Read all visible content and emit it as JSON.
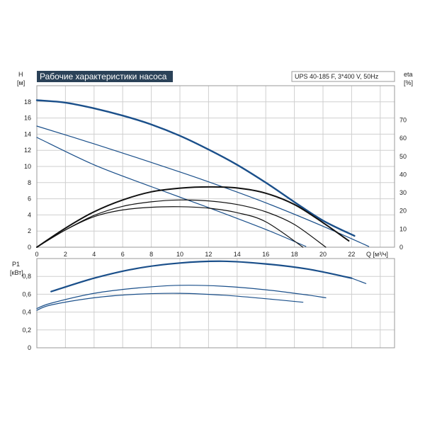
{
  "chart_data": [
    {
      "type": "line",
      "title": "Рабочие характеристики насоса",
      "model": "UPS 40-185 F, 3*400 V, 50Hz",
      "ylabel_left": "H",
      "ylabel_left_unit": "[м]",
      "ylabel_right": "eta",
      "ylabel_right_unit": "[%]",
      "xlabel": "Q [м³/ч]",
      "xlim": [
        0,
        25
      ],
      "ylim": [
        0,
        20
      ],
      "y2lim": [
        0,
        88.9
      ],
      "grid": true,
      "x_ticks": [
        "0",
        "2",
        "4",
        "6",
        "8",
        "10",
        "12",
        "14",
        "16",
        "18",
        "20",
        "22"
      ],
      "y_ticks": [
        "0",
        "2",
        "4",
        "6",
        "8",
        "10",
        "12",
        "14",
        "16",
        "18"
      ],
      "y2_ticks": [
        "0",
        "10",
        "20",
        "30",
        "40",
        "50",
        "60",
        "70"
      ],
      "series": [
        {
          "kind": "head",
          "color": "#1a4f8a",
          "width": 2.4,
          "x": [
            0,
            2,
            4,
            6,
            8,
            10,
            12,
            14,
            16,
            18,
            20,
            22.2
          ],
          "y": [
            18.2,
            17.9,
            17.2,
            16.3,
            15.2,
            13.8,
            12.1,
            10.2,
            8.0,
            5.6,
            3.3,
            1.4
          ]
        },
        {
          "kind": "head",
          "color": "#1a4f8a",
          "width": 1.2,
          "x": [
            0,
            4,
            8,
            12,
            16,
            20,
            23.2
          ],
          "y": [
            15.0,
            12.8,
            10.5,
            8.1,
            5.5,
            2.6,
            0.1
          ]
        },
        {
          "kind": "head",
          "color": "#1a4f8a",
          "width": 1.2,
          "x": [
            0,
            4,
            8,
            12,
            16,
            18.8
          ],
          "y": [
            13.6,
            10.2,
            7.5,
            4.9,
            2.2,
            0.1
          ]
        },
        {
          "kind": "eta",
          "color": "#111111",
          "width": 2.0,
          "x": [
            0,
            2,
            4,
            6,
            8,
            10,
            12,
            14,
            16,
            18,
            20,
            21.8
          ],
          "y": [
            0,
            10.5,
            19.5,
            26.0,
            30.5,
            32.5,
            33.2,
            32.6,
            29.7,
            23.5,
            13.5,
            3.5
          ]
        },
        {
          "kind": "eta",
          "color": "#111111",
          "width": 1.2,
          "x": [
            0,
            2,
            4,
            6,
            8,
            10,
            12,
            14,
            16,
            18,
            20.2
          ],
          "y": [
            0,
            9.5,
            17.5,
            22.5,
            25.0,
            26.0,
            25.5,
            23.5,
            19.5,
            12.5,
            0
          ]
        },
        {
          "kind": "eta",
          "color": "#111111",
          "width": 1.2,
          "x": [
            0,
            2,
            4,
            6,
            8,
            10,
            12,
            14,
            16,
            18.6
          ],
          "y": [
            0,
            9.5,
            16.8,
            20.5,
            22.0,
            22.3,
            21.5,
            19.0,
            14.0,
            0
          ]
        }
      ]
    },
    {
      "type": "line",
      "ylabel": "P1",
      "ylabel_unit": "[кВт]",
      "xlim": [
        0,
        25
      ],
      "ylim": [
        0,
        1.0
      ],
      "grid": true,
      "y_ticks": [
        "0",
        "0,2",
        "0,4",
        "0,6",
        "0,8"
      ],
      "series": [
        {
          "color": "#1a4f8a",
          "width": 2.2,
          "x": [
            1,
            4,
            7,
            10,
            13,
            16,
            19,
            22
          ],
          "y": [
            0.63,
            0.78,
            0.89,
            0.95,
            0.97,
            0.94,
            0.88,
            0.78
          ]
        },
        {
          "color": "#1a4f8a",
          "width": 1.2,
          "x": [
            22,
            23
          ],
          "y": [
            0.78,
            0.72
          ]
        },
        {
          "color": "#1a4f8a",
          "width": 1.2,
          "x": [
            0,
            1,
            4,
            7,
            10,
            13,
            16,
            19,
            20.2
          ],
          "y": [
            0.44,
            0.5,
            0.61,
            0.67,
            0.7,
            0.69,
            0.65,
            0.59,
            0.56
          ]
        },
        {
          "color": "#1a4f8a",
          "width": 1.2,
          "x": [
            0,
            1,
            4,
            7,
            10,
            13,
            16,
            18.6
          ],
          "y": [
            0.42,
            0.48,
            0.56,
            0.6,
            0.61,
            0.59,
            0.55,
            0.51
          ]
        }
      ]
    }
  ]
}
